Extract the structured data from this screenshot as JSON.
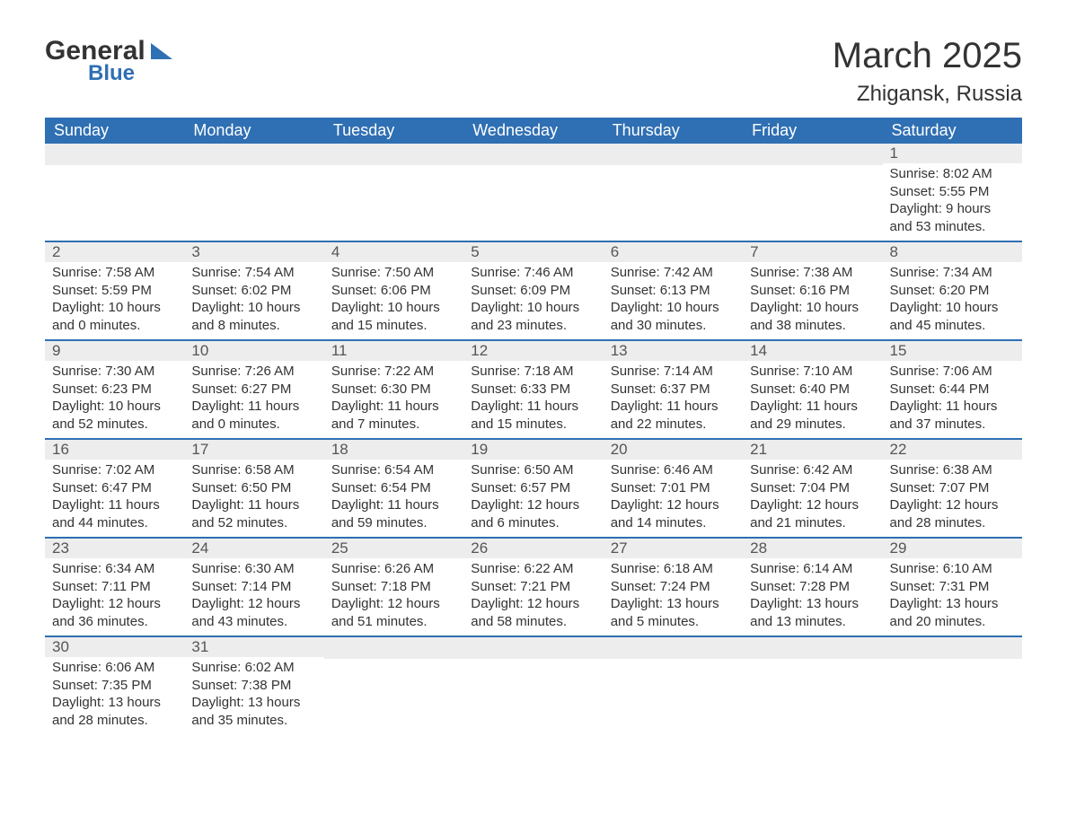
{
  "logo": {
    "line1": "General",
    "line2": "Blue"
  },
  "title": "March 2025",
  "location": "Zhigansk, Russia",
  "colors": {
    "header_bg": "#2f6fb3",
    "header_text": "#ffffff",
    "daynum_bg": "#ededed",
    "row_border": "#2f6fb3",
    "body_text": "#333333",
    "page_bg": "#ffffff"
  },
  "fonts": {
    "title_size_pt": 30,
    "location_size_pt": 18,
    "header_size_pt": 14,
    "cell_size_pt": 11
  },
  "columns": [
    "Sunday",
    "Monday",
    "Tuesday",
    "Wednesday",
    "Thursday",
    "Friday",
    "Saturday"
  ],
  "weeks": [
    [
      null,
      null,
      null,
      null,
      null,
      null,
      {
        "n": "1",
        "sunrise": "Sunrise: 8:02 AM",
        "sunset": "Sunset: 5:55 PM",
        "day1": "Daylight: 9 hours",
        "day2": "and 53 minutes."
      }
    ],
    [
      {
        "n": "2",
        "sunrise": "Sunrise: 7:58 AM",
        "sunset": "Sunset: 5:59 PM",
        "day1": "Daylight: 10 hours",
        "day2": "and 0 minutes."
      },
      {
        "n": "3",
        "sunrise": "Sunrise: 7:54 AM",
        "sunset": "Sunset: 6:02 PM",
        "day1": "Daylight: 10 hours",
        "day2": "and 8 minutes."
      },
      {
        "n": "4",
        "sunrise": "Sunrise: 7:50 AM",
        "sunset": "Sunset: 6:06 PM",
        "day1": "Daylight: 10 hours",
        "day2": "and 15 minutes."
      },
      {
        "n": "5",
        "sunrise": "Sunrise: 7:46 AM",
        "sunset": "Sunset: 6:09 PM",
        "day1": "Daylight: 10 hours",
        "day2": "and 23 minutes."
      },
      {
        "n": "6",
        "sunrise": "Sunrise: 7:42 AM",
        "sunset": "Sunset: 6:13 PM",
        "day1": "Daylight: 10 hours",
        "day2": "and 30 minutes."
      },
      {
        "n": "7",
        "sunrise": "Sunrise: 7:38 AM",
        "sunset": "Sunset: 6:16 PM",
        "day1": "Daylight: 10 hours",
        "day2": "and 38 minutes."
      },
      {
        "n": "8",
        "sunrise": "Sunrise: 7:34 AM",
        "sunset": "Sunset: 6:20 PM",
        "day1": "Daylight: 10 hours",
        "day2": "and 45 minutes."
      }
    ],
    [
      {
        "n": "9",
        "sunrise": "Sunrise: 7:30 AM",
        "sunset": "Sunset: 6:23 PM",
        "day1": "Daylight: 10 hours",
        "day2": "and 52 minutes."
      },
      {
        "n": "10",
        "sunrise": "Sunrise: 7:26 AM",
        "sunset": "Sunset: 6:27 PM",
        "day1": "Daylight: 11 hours",
        "day2": "and 0 minutes."
      },
      {
        "n": "11",
        "sunrise": "Sunrise: 7:22 AM",
        "sunset": "Sunset: 6:30 PM",
        "day1": "Daylight: 11 hours",
        "day2": "and 7 minutes."
      },
      {
        "n": "12",
        "sunrise": "Sunrise: 7:18 AM",
        "sunset": "Sunset: 6:33 PM",
        "day1": "Daylight: 11 hours",
        "day2": "and 15 minutes."
      },
      {
        "n": "13",
        "sunrise": "Sunrise: 7:14 AM",
        "sunset": "Sunset: 6:37 PM",
        "day1": "Daylight: 11 hours",
        "day2": "and 22 minutes."
      },
      {
        "n": "14",
        "sunrise": "Sunrise: 7:10 AM",
        "sunset": "Sunset: 6:40 PM",
        "day1": "Daylight: 11 hours",
        "day2": "and 29 minutes."
      },
      {
        "n": "15",
        "sunrise": "Sunrise: 7:06 AM",
        "sunset": "Sunset: 6:44 PM",
        "day1": "Daylight: 11 hours",
        "day2": "and 37 minutes."
      }
    ],
    [
      {
        "n": "16",
        "sunrise": "Sunrise: 7:02 AM",
        "sunset": "Sunset: 6:47 PM",
        "day1": "Daylight: 11 hours",
        "day2": "and 44 minutes."
      },
      {
        "n": "17",
        "sunrise": "Sunrise: 6:58 AM",
        "sunset": "Sunset: 6:50 PM",
        "day1": "Daylight: 11 hours",
        "day2": "and 52 minutes."
      },
      {
        "n": "18",
        "sunrise": "Sunrise: 6:54 AM",
        "sunset": "Sunset: 6:54 PM",
        "day1": "Daylight: 11 hours",
        "day2": "and 59 minutes."
      },
      {
        "n": "19",
        "sunrise": "Sunrise: 6:50 AM",
        "sunset": "Sunset: 6:57 PM",
        "day1": "Daylight: 12 hours",
        "day2": "and 6 minutes."
      },
      {
        "n": "20",
        "sunrise": "Sunrise: 6:46 AM",
        "sunset": "Sunset: 7:01 PM",
        "day1": "Daylight: 12 hours",
        "day2": "and 14 minutes."
      },
      {
        "n": "21",
        "sunrise": "Sunrise: 6:42 AM",
        "sunset": "Sunset: 7:04 PM",
        "day1": "Daylight: 12 hours",
        "day2": "and 21 minutes."
      },
      {
        "n": "22",
        "sunrise": "Sunrise: 6:38 AM",
        "sunset": "Sunset: 7:07 PM",
        "day1": "Daylight: 12 hours",
        "day2": "and 28 minutes."
      }
    ],
    [
      {
        "n": "23",
        "sunrise": "Sunrise: 6:34 AM",
        "sunset": "Sunset: 7:11 PM",
        "day1": "Daylight: 12 hours",
        "day2": "and 36 minutes."
      },
      {
        "n": "24",
        "sunrise": "Sunrise: 6:30 AM",
        "sunset": "Sunset: 7:14 PM",
        "day1": "Daylight: 12 hours",
        "day2": "and 43 minutes."
      },
      {
        "n": "25",
        "sunrise": "Sunrise: 6:26 AM",
        "sunset": "Sunset: 7:18 PM",
        "day1": "Daylight: 12 hours",
        "day2": "and 51 minutes."
      },
      {
        "n": "26",
        "sunrise": "Sunrise: 6:22 AM",
        "sunset": "Sunset: 7:21 PM",
        "day1": "Daylight: 12 hours",
        "day2": "and 58 minutes."
      },
      {
        "n": "27",
        "sunrise": "Sunrise: 6:18 AM",
        "sunset": "Sunset: 7:24 PM",
        "day1": "Daylight: 13 hours",
        "day2": "and 5 minutes."
      },
      {
        "n": "28",
        "sunrise": "Sunrise: 6:14 AM",
        "sunset": "Sunset: 7:28 PM",
        "day1": "Daylight: 13 hours",
        "day2": "and 13 minutes."
      },
      {
        "n": "29",
        "sunrise": "Sunrise: 6:10 AM",
        "sunset": "Sunset: 7:31 PM",
        "day1": "Daylight: 13 hours",
        "day2": "and 20 minutes."
      }
    ],
    [
      {
        "n": "30",
        "sunrise": "Sunrise: 6:06 AM",
        "sunset": "Sunset: 7:35 PM",
        "day1": "Daylight: 13 hours",
        "day2": "and 28 minutes."
      },
      {
        "n": "31",
        "sunrise": "Sunrise: 6:02 AM",
        "sunset": "Sunset: 7:38 PM",
        "day1": "Daylight: 13 hours",
        "day2": "and 35 minutes."
      },
      null,
      null,
      null,
      null,
      null
    ]
  ]
}
